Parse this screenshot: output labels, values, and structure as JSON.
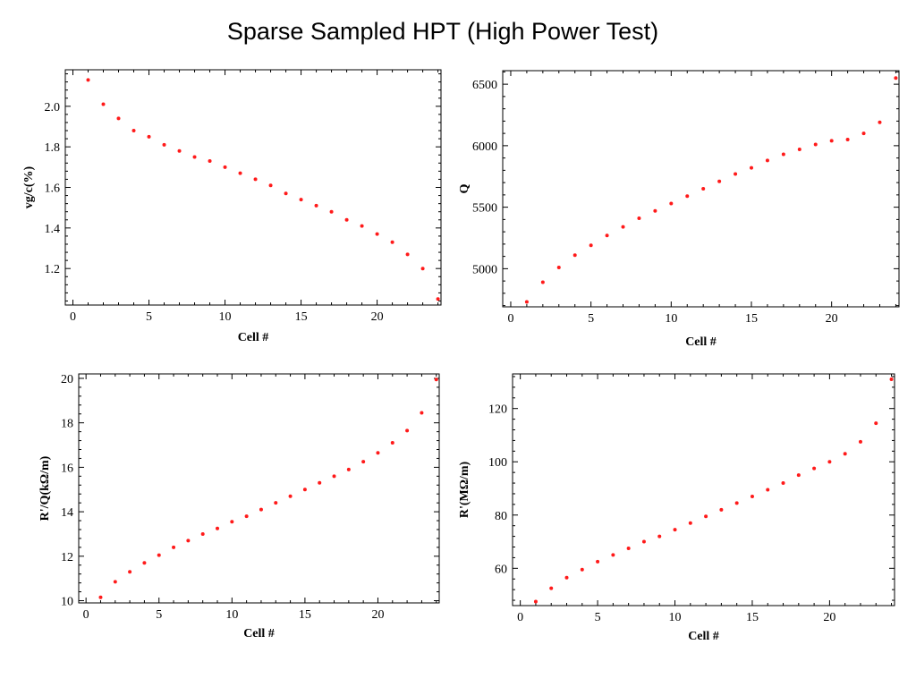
{
  "page": {
    "title": "Sparse Sampled HPT (High Power Test)"
  },
  "colors": {
    "points": "#ff1a1a",
    "frame": "#000000"
  },
  "chart_data": [
    {
      "type": "scatter",
      "xlabel": "Cell #",
      "ylabel": "vg/c(%)",
      "xlim": [
        -0.5,
        24.2
      ],
      "ylim": [
        1.02,
        2.18
      ],
      "xticks": [
        0,
        5,
        10,
        15,
        20
      ],
      "yticks": [
        1.2,
        1.4,
        1.6,
        1.8,
        2.0
      ],
      "ytick_labels": [
        "1.2",
        "1.4",
        "1.6",
        "1.8",
        "2.0"
      ],
      "grid": false,
      "x": [
        1,
        2,
        3,
        4,
        5,
        6,
        7,
        8,
        9,
        10,
        11,
        12,
        13,
        14,
        15,
        16,
        17,
        18,
        19,
        20,
        21,
        22,
        23,
        24
      ],
      "y": [
        2.13,
        2.01,
        1.94,
        1.88,
        1.85,
        1.81,
        1.78,
        1.75,
        1.73,
        1.7,
        1.67,
        1.64,
        1.61,
        1.57,
        1.54,
        1.51,
        1.48,
        1.44,
        1.41,
        1.37,
        1.33,
        1.27,
        1.2,
        1.05
      ]
    },
    {
      "type": "scatter",
      "xlabel": "Cell #",
      "ylabel": "Q",
      "xlim": [
        -0.5,
        24.2
      ],
      "ylim": [
        4690,
        6610
      ],
      "xticks": [
        0,
        5,
        10,
        15,
        20
      ],
      "yticks": [
        5000,
        5500,
        6000,
        6500
      ],
      "ytick_labels": [
        "5000",
        "5500",
        "6000",
        "6500"
      ],
      "grid": false,
      "x": [
        1,
        2,
        3,
        4,
        5,
        6,
        7,
        8,
        9,
        10,
        11,
        12,
        13,
        14,
        15,
        16,
        17,
        18,
        19,
        20,
        21,
        22,
        23,
        24
      ],
      "y": [
        4730,
        4890,
        5010,
        5110,
        5190,
        5270,
        5340,
        5410,
        5470,
        5530,
        5590,
        5650,
        5710,
        5770,
        5820,
        5880,
        5930,
        5970,
        6010,
        6040,
        6050,
        6100,
        6190,
        6550
      ]
    },
    {
      "type": "scatter",
      "xlabel": "Cell #",
      "ylabel": "R'/Q(kΩ/m)",
      "xlim": [
        -0.5,
        24.2
      ],
      "ylim": [
        9.9,
        20.2
      ],
      "xticks": [
        0,
        5,
        10,
        15,
        20
      ],
      "yticks": [
        10,
        12,
        14,
        16,
        18,
        20
      ],
      "ytick_labels": [
        "10",
        "12",
        "14",
        "16",
        "18",
        "20"
      ],
      "grid": false,
      "x": [
        1,
        2,
        3,
        4,
        5,
        6,
        7,
        8,
        9,
        10,
        11,
        12,
        13,
        14,
        15,
        16,
        17,
        18,
        19,
        20,
        21,
        22,
        23,
        24
      ],
      "y": [
        10.15,
        10.85,
        11.3,
        11.7,
        12.05,
        12.4,
        12.7,
        13.0,
        13.25,
        13.55,
        13.8,
        14.1,
        14.4,
        14.7,
        15.0,
        15.3,
        15.6,
        15.9,
        16.25,
        16.65,
        17.1,
        17.65,
        18.45,
        19.95
      ]
    },
    {
      "type": "scatter",
      "xlabel": "Cell #",
      "ylabel": "R'(MΩ/m)",
      "xlim": [
        -0.5,
        24.2
      ],
      "ylim": [
        46,
        133
      ],
      "xticks": [
        0,
        5,
        10,
        15,
        20
      ],
      "yticks": [
        60,
        80,
        100,
        120
      ],
      "ytick_labels": [
        "60",
        "80",
        "100",
        "120"
      ],
      "grid": false,
      "x": [
        1,
        2,
        3,
        4,
        5,
        6,
        7,
        8,
        9,
        10,
        11,
        12,
        13,
        14,
        15,
        16,
        17,
        18,
        19,
        20,
        21,
        22,
        23,
        24
      ],
      "y": [
        47.5,
        52.5,
        56.5,
        59.5,
        62.5,
        65,
        67.5,
        70,
        72,
        74.5,
        77,
        79.5,
        82,
        84.5,
        87,
        89.5,
        92,
        95,
        97.5,
        100,
        103,
        107.5,
        114.5,
        131
      ]
    }
  ]
}
